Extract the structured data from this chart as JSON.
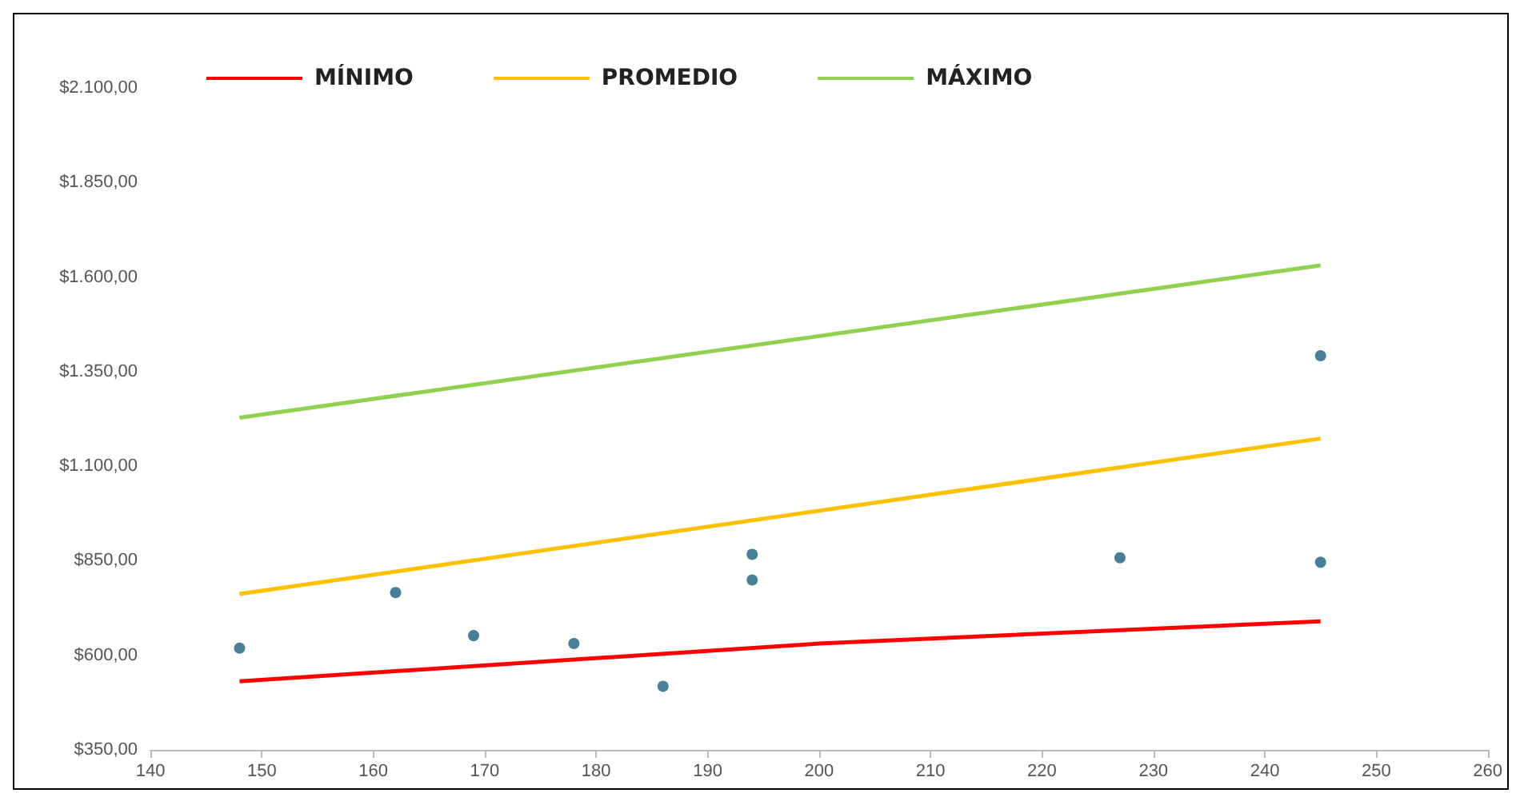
{
  "chart_data": {
    "type": "scatter",
    "legend": "top left",
    "grid": false,
    "marker": "circle",
    "xlim": [
      140,
      260
    ],
    "xticks": [
      140,
      150,
      160,
      170,
      180,
      190,
      200,
      210,
      220,
      230,
      240,
      250,
      260
    ],
    "ylim": [
      350,
      2100
    ],
    "yticks": [
      {
        "value": 350,
        "label": "$350,00"
      },
      {
        "value": 600,
        "label": "$600,00"
      },
      {
        "value": 850,
        "label": "$850,00"
      },
      {
        "value": 1100,
        "label": "$1.100,00"
      },
      {
        "value": 1350,
        "label": "$1.350,00"
      },
      {
        "value": 1600,
        "label": "$1.600,00"
      },
      {
        "value": 1850,
        "label": "$1.850,00"
      },
      {
        "value": 2100,
        "label": "$2.100,00"
      }
    ],
    "series": [
      {
        "color": "#1b5e7e",
        "x": [
          148,
          162,
          169,
          178,
          186,
          194,
          194,
          227,
          245,
          245
        ],
        "values": [
          619,
          766,
          652,
          631,
          518,
          867,
          799,
          858,
          1392,
          846
        ]
      },
      {
        "type": "line",
        "name": "MÍNIMO",
        "color": "#ff0000",
        "marker": "none",
        "x": [
          148,
          200,
          245
        ],
        "values": [
          531,
          631,
          690
        ]
      },
      {
        "type": "line",
        "name": "PROMEDIO",
        "color": "#ffc000",
        "marker": "none",
        "x": [
          148,
          245
        ],
        "values": [
          762,
          1173
        ]
      },
      {
        "type": "line",
        "name": "MÁXIMO",
        "color": "#92d050",
        "marker": "none",
        "x": [
          148,
          245
        ],
        "values": [
          1228,
          1631
        ]
      }
    ]
  }
}
